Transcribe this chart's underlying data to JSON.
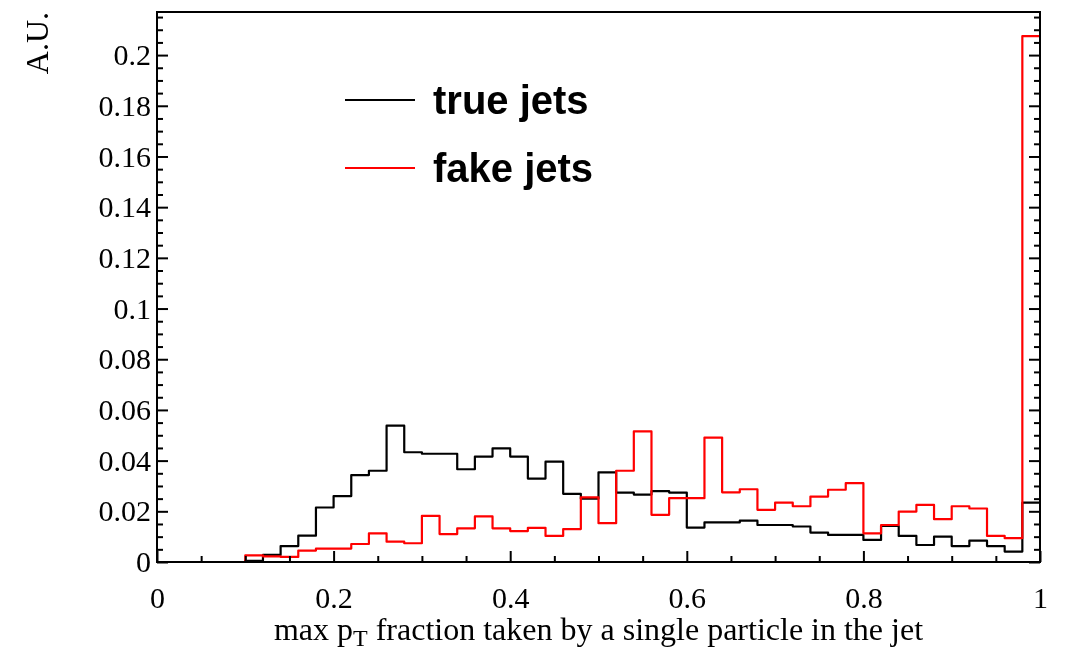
{
  "chart_data": {
    "type": "histogram",
    "xlabel": "max p$_{T}$ fraction taken by a single particle in the jet",
    "ylabel": "A.U.",
    "bins": [
      0,
      0.02,
      0.04,
      0.06,
      0.08,
      0.1,
      0.12,
      0.14,
      0.16,
      0.18,
      0.2,
      0.22,
      0.24,
      0.26,
      0.28,
      0.3,
      0.32,
      0.34,
      0.36,
      0.38,
      0.4,
      0.42,
      0.44,
      0.46,
      0.48,
      0.5,
      0.52,
      0.54,
      0.56,
      0.58,
      0.6,
      0.62,
      0.64,
      0.66,
      0.68,
      0.7,
      0.72,
      0.74,
      0.76,
      0.78,
      0.8,
      0.82,
      0.84,
      0.86,
      0.88,
      0.9,
      0.92,
      0.94,
      0.96,
      0.98,
      1
    ],
    "series": [
      {
        "name": "true jets",
        "color": "#000000",
        "values": [
          0,
          0,
          0,
          0,
          0,
          0.0005,
          0.0028,
          0.0063,
          0.0104,
          0.0215,
          0.026,
          0.0343,
          0.036,
          0.0538,
          0.0433,
          0.0427,
          0.0427,
          0.0366,
          0.0416,
          0.0448,
          0.0416,
          0.0329,
          0.0396,
          0.0269,
          0.025,
          0.0354,
          0.0274,
          0.0266,
          0.028,
          0.0274,
          0.0136,
          0.0156,
          0.0156,
          0.0163,
          0.0146,
          0.0146,
          0.014,
          0.0116,
          0.0107,
          0.0107,
          0.0087,
          0.0142,
          0.0103,
          0.0067,
          0.01,
          0.0063,
          0.0084,
          0.0063,
          0.0041,
          0.0234
        ]
      },
      {
        "name": "fake jets",
        "color": "#ff0000",
        "values": [
          0,
          0,
          0,
          0,
          0,
          0.0026,
          0.0022,
          0.002,
          0.0045,
          0.0053,
          0.0053,
          0.0071,
          0.0113,
          0.008,
          0.0074,
          0.0182,
          0.011,
          0.0133,
          0.018,
          0.0133,
          0.0122,
          0.0135,
          0.0103,
          0.013,
          0.0255,
          0.0153,
          0.036,
          0.0515,
          0.0186,
          0.0252,
          0.0252,
          0.0491,
          0.0275,
          0.0287,
          0.0206,
          0.0234,
          0.022,
          0.0258,
          0.0285,
          0.0311,
          0.0113,
          0.0146,
          0.0199,
          0.0225,
          0.0169,
          0.022,
          0.0211,
          0.0103,
          0.0094,
          0.2075
        ]
      }
    ],
    "xlim": [
      0,
      1
    ],
    "ylim": [
      0,
      0.217
    ],
    "xticks": [
      0,
      {
        "value": 0.05,
        "label": null
      },
      {
        "value": 0.1,
        "label": null
      },
      {
        "value": 0.15,
        "label": null
      },
      0.2,
      {
        "value": 0.25,
        "label": null
      },
      {
        "value": 0.3,
        "label": null
      },
      {
        "value": 0.35,
        "label": null
      },
      0.4,
      {
        "value": 0.45,
        "label": null
      },
      {
        "value": 0.5,
        "label": null
      },
      {
        "value": 0.55,
        "label": null
      },
      0.6,
      {
        "value": 0.65,
        "label": null
      },
      {
        "value": 0.7,
        "label": null
      },
      {
        "value": 0.75,
        "label": null
      },
      0.8,
      {
        "value": 0.85,
        "label": null
      },
      {
        "value": 0.9,
        "label": null
      },
      {
        "value": 0.95,
        "label": null
      },
      1
    ],
    "yticks": [
      0,
      {
        "value": 0.005,
        "label": null
      },
      {
        "value": 0.01,
        "label": null
      },
      {
        "value": 0.015,
        "label": null
      },
      0.02,
      {
        "value": 0.025,
        "label": null
      },
      {
        "value": 0.03,
        "label": null
      },
      {
        "value": 0.035,
        "label": null
      },
      0.04,
      {
        "value": 0.045,
        "label": null
      },
      {
        "value": 0.05,
        "label": null
      },
      {
        "value": 0.055,
        "label": null
      },
      0.06,
      {
        "value": 0.065,
        "label": null
      },
      {
        "value": 0.07,
        "label": null
      },
      {
        "value": 0.075,
        "label": null
      },
      0.08,
      {
        "value": 0.085,
        "label": null
      },
      {
        "value": 0.09,
        "label": null
      },
      {
        "value": 0.095,
        "label": null
      },
      0.1,
      {
        "value": 0.105,
        "label": null
      },
      {
        "value": 0.11,
        "label": null
      },
      {
        "value": 0.115,
        "label": null
      },
      0.12,
      {
        "value": 0.125,
        "label": null
      },
      {
        "value": 0.13,
        "label": null
      },
      {
        "value": 0.135,
        "label": null
      },
      0.14,
      {
        "value": 0.145,
        "label": null
      },
      {
        "value": 0.15,
        "label": null
      },
      {
        "value": 0.155,
        "label": null
      },
      0.16,
      {
        "value": 0.165,
        "label": null
      },
      {
        "value": 0.17,
        "label": null
      },
      {
        "value": 0.175,
        "label": null
      },
      0.18,
      {
        "value": 0.185,
        "label": null
      },
      {
        "value": 0.19,
        "label": null
      },
      {
        "value": 0.195,
        "label": null
      },
      0.2,
      {
        "value": 0.205,
        "label": null
      },
      {
        "value": 0.21,
        "label": null
      },
      {
        "value": 0.215,
        "label": null
      }
    ],
    "legend": "top left"
  }
}
